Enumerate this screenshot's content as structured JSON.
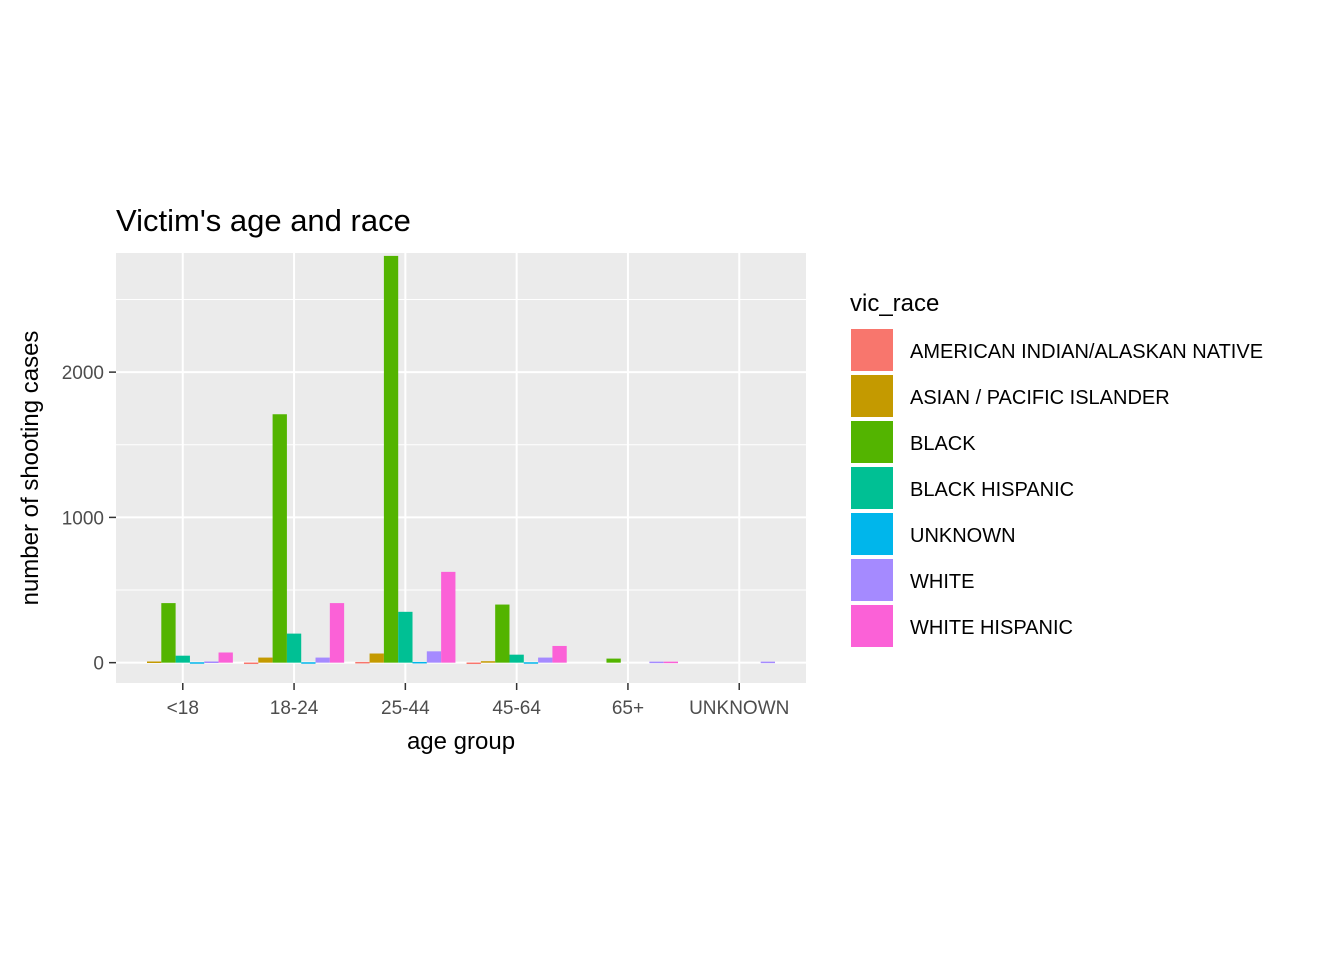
{
  "chart_data": {
    "type": "bar",
    "title": "Victim's age and race",
    "xlabel": "age group",
    "ylabel": "number of shooting cases",
    "categories": [
      "<18",
      "18-24",
      "25-44",
      "45-64",
      "65+",
      "UNKNOWN"
    ],
    "ylim": [
      -140,
      2820
    ],
    "yticks": [
      0,
      1000,
      2000
    ],
    "grid": true,
    "legend": {
      "title": "vic_race",
      "position": "right"
    },
    "series": [
      {
        "name": "AMERICAN INDIAN/ALASKAN NATIVE",
        "color": "#F8766D",
        "values": [
          0,
          1,
          5,
          1,
          0,
          0
        ]
      },
      {
        "name": "ASIAN / PACIFIC ISLANDER",
        "color": "#C49A00",
        "values": [
          8,
          35,
          63,
          10,
          0,
          0
        ]
      },
      {
        "name": "BLACK",
        "color": "#53B400",
        "values": [
          410,
          1710,
          2800,
          400,
          28,
          0
        ]
      },
      {
        "name": "BLACK HISPANIC",
        "color": "#00C094",
        "values": [
          48,
          200,
          350,
          55,
          0,
          0
        ]
      },
      {
        "name": "UNKNOWN",
        "color": "#00B6EB",
        "values": [
          3,
          3,
          5,
          3,
          0,
          0
        ]
      },
      {
        "name": "WHITE",
        "color": "#A58AFF",
        "values": [
          8,
          35,
          78,
          35,
          7,
          7
        ]
      },
      {
        "name": "WHITE HISPANIC",
        "color": "#FB61D7",
        "values": [
          70,
          410,
          625,
          115,
          7,
          0
        ]
      }
    ]
  }
}
